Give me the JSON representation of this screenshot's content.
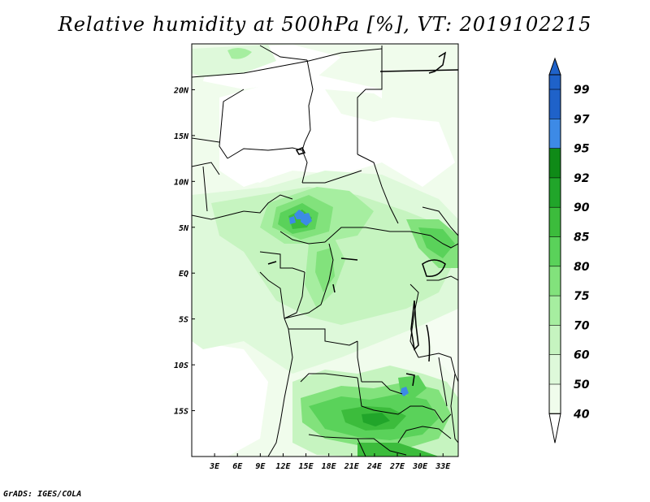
{
  "title": "Relative humidity at 500hPa [%], VT: 2019102215",
  "credit": "GrADS: IGES/COLA",
  "map": {
    "lon_range": [
      0,
      35
    ],
    "lat_range": [
      -20,
      25
    ],
    "lon_ticks": [
      "3E",
      "6E",
      "9E",
      "12E",
      "15E",
      "18E",
      "21E",
      "24E",
      "27E",
      "30E",
      "33E"
    ],
    "lon_tick_values": [
      3,
      6,
      9,
      12,
      15,
      18,
      21,
      24,
      27,
      30,
      33
    ],
    "lat_ticks": [
      "20N",
      "15N",
      "10N",
      "5N",
      "EQ",
      "5S",
      "10S",
      "15S"
    ],
    "lat_tick_values": [
      20,
      15,
      10,
      5,
      0,
      -5,
      -10,
      -15
    ]
  },
  "colorbar": {
    "levels": [
      "99",
      "97",
      "95",
      "92",
      "90",
      "85",
      "80",
      "75",
      "70",
      "60",
      "50",
      "40"
    ],
    "colors": [
      "#1f62c9",
      "#1f62c9",
      "#3d8ae6",
      "#0f8a17",
      "#21a52a",
      "#3cbc3c",
      "#5ad25a",
      "#82e27c",
      "#a6eea0",
      "#c6f4c0",
      "#def9da",
      "#f0fcec",
      "#ffffff"
    ],
    "top_arrow_color": "#1f62c9",
    "bottom_arrow_color": "#ffffff"
  }
}
